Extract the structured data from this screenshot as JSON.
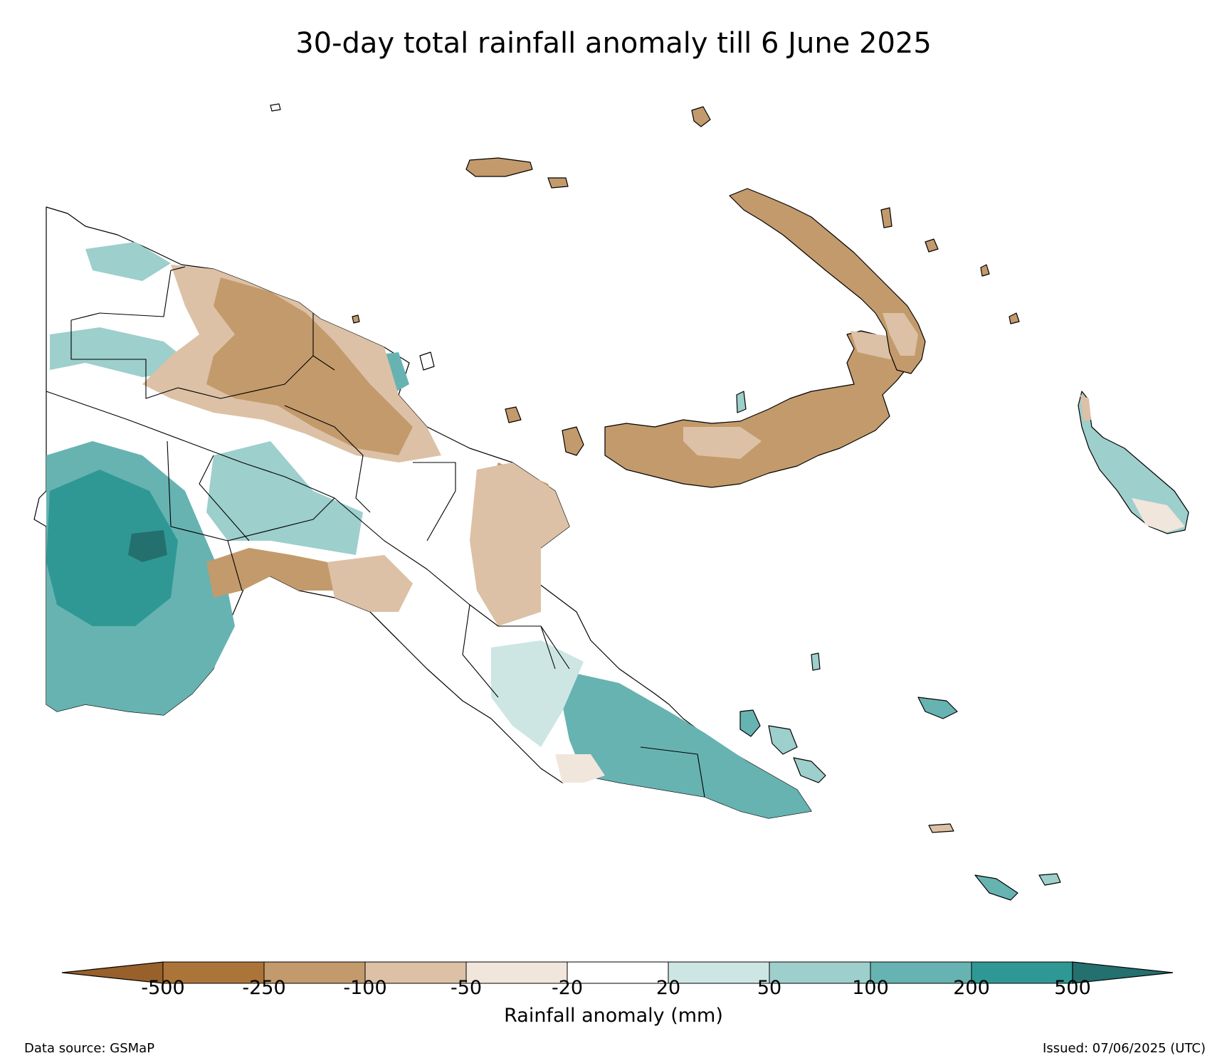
{
  "title": "30-day total rainfall anomaly till 6 June 2025",
  "legend": {
    "axis_label": "Rainfall anomaly (mm)",
    "ticks": [
      "-500",
      "-250",
      "-100",
      "-50",
      "-20",
      "20",
      "50",
      "100",
      "200",
      "500"
    ],
    "bins": [
      {
        "range": "below -500",
        "color": "#98602b"
      },
      {
        "range": "-500 to -250",
        "color": "#ab7539"
      },
      {
        "range": "-250 to -100",
        "color": "#c39a6b"
      },
      {
        "range": "-100 to -50",
        "color": "#dcc1a6"
      },
      {
        "range": "-50 to -20",
        "color": "#f1e6db"
      },
      {
        "range": "-20 to 20",
        "color": "#ffffff"
      },
      {
        "range": "20 to 50",
        "color": "#cde6e4"
      },
      {
        "range": "50 to 100",
        "color": "#9dcfcc"
      },
      {
        "range": "100 to 200",
        "color": "#67b3b1"
      },
      {
        "range": "200 to 500",
        "color": "#2f9894"
      },
      {
        "range": "above 500",
        "color": "#24706e"
      }
    ]
  },
  "footer": {
    "data_source": "Data source: GSMaP",
    "issued": "Issued: 07/06/2025 (UTC)"
  }
}
